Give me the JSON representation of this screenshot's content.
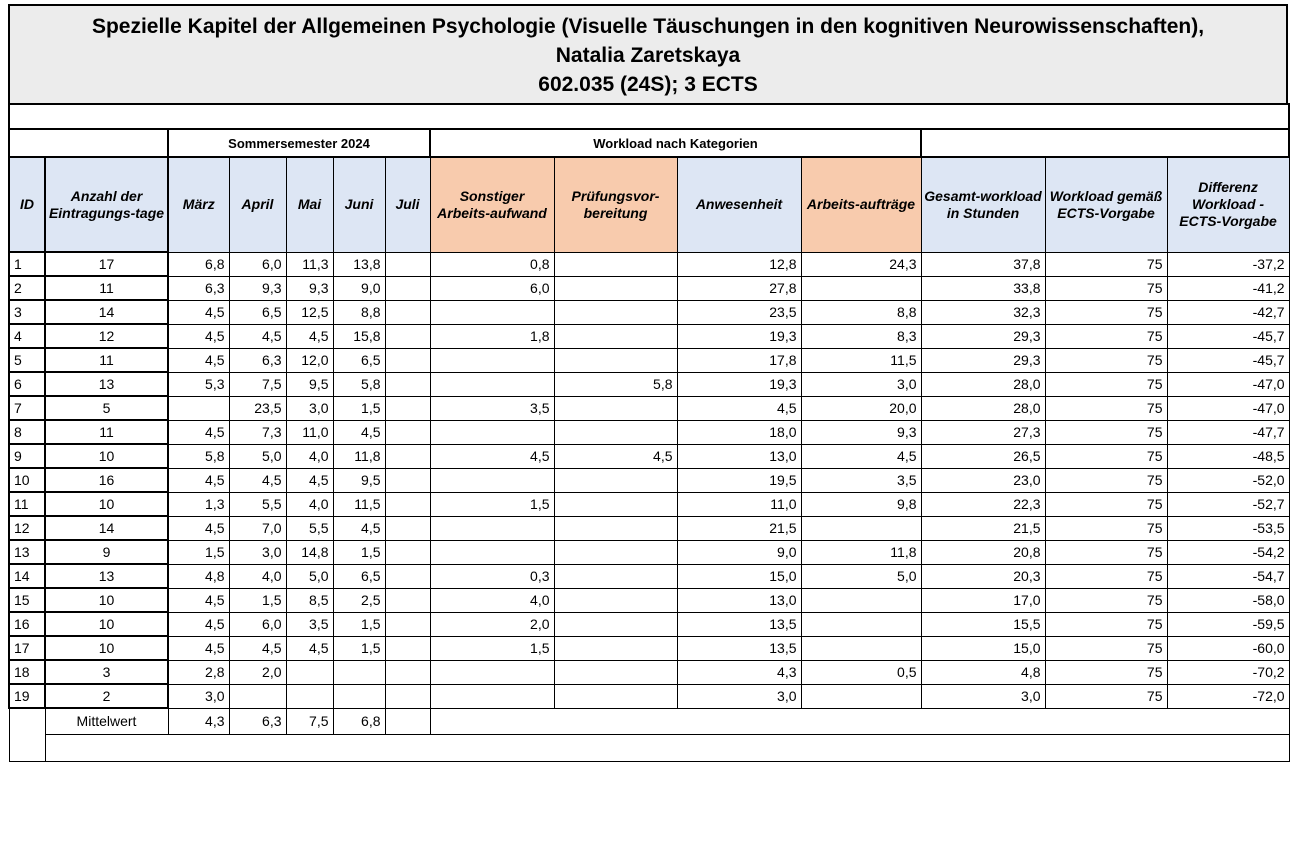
{
  "title": {
    "line1": "Spezielle Kapitel der Allgemeinen Psychologie (Visuelle Täuschungen in den kognitiven Neurowissenschaften),",
    "line2": "Natalia Zaretskaya",
    "line3": "602.035 (24S); 3 ECTS"
  },
  "groups": {
    "semester": "Sommersemester 2024",
    "workload": "Workload nach Kategorien"
  },
  "headers": {
    "id": "ID",
    "days": "Anzahl der Eintragungs-tage",
    "maerz": "März",
    "april": "April",
    "mai": "Mai",
    "juni": "Juni",
    "juli": "Juli",
    "sonstiger": "Sonstiger Arbeits-aufwand",
    "pruefung": "Prüfungsvor-bereitung",
    "anwesenheit": "Anwesenheit",
    "arbeit": "Arbeits-aufträge",
    "gesamt": "Gesamt-workload in Stunden",
    "ects": "Workload gemäß ECTS-Vorgabe",
    "diff": "Differenz Workload - ECTS-Vorgabe"
  },
  "rows": [
    [
      "1",
      "17",
      "6,8",
      "6,0",
      "11,3",
      "13,8",
      "",
      "0,8",
      "",
      "12,8",
      "24,3",
      "37,8",
      "75",
      "-37,2"
    ],
    [
      "2",
      "11",
      "6,3",
      "9,3",
      "9,3",
      "9,0",
      "",
      "6,0",
      "",
      "27,8",
      "",
      "33,8",
      "75",
      "-41,2"
    ],
    [
      "3",
      "14",
      "4,5",
      "6,5",
      "12,5",
      "8,8",
      "",
      "",
      "",
      "23,5",
      "8,8",
      "32,3",
      "75",
      "-42,7"
    ],
    [
      "4",
      "12",
      "4,5",
      "4,5",
      "4,5",
      "15,8",
      "",
      "1,8",
      "",
      "19,3",
      "8,3",
      "29,3",
      "75",
      "-45,7"
    ],
    [
      "5",
      "11",
      "4,5",
      "6,3",
      "12,0",
      "6,5",
      "",
      "",
      "",
      "17,8",
      "11,5",
      "29,3",
      "75",
      "-45,7"
    ],
    [
      "6",
      "13",
      "5,3",
      "7,5",
      "9,5",
      "5,8",
      "",
      "",
      "5,8",
      "19,3",
      "3,0",
      "28,0",
      "75",
      "-47,0"
    ],
    [
      "7",
      "5",
      "",
      "23,5",
      "3,0",
      "1,5",
      "",
      "3,5",
      "",
      "4,5",
      "20,0",
      "28,0",
      "75",
      "-47,0"
    ],
    [
      "8",
      "11",
      "4,5",
      "7,3",
      "11,0",
      "4,5",
      "",
      "",
      "",
      "18,0",
      "9,3",
      "27,3",
      "75",
      "-47,7"
    ],
    [
      "9",
      "10",
      "5,8",
      "5,0",
      "4,0",
      "11,8",
      "",
      "4,5",
      "4,5",
      "13,0",
      "4,5",
      "26,5",
      "75",
      "-48,5"
    ],
    [
      "10",
      "16",
      "4,5",
      "4,5",
      "4,5",
      "9,5",
      "",
      "",
      "",
      "19,5",
      "3,5",
      "23,0",
      "75",
      "-52,0"
    ],
    [
      "11",
      "10",
      "1,3",
      "5,5",
      "4,0",
      "11,5",
      "",
      "1,5",
      "",
      "11,0",
      "9,8",
      "22,3",
      "75",
      "-52,7"
    ],
    [
      "12",
      "14",
      "4,5",
      "7,0",
      "5,5",
      "4,5",
      "",
      "",
      "",
      "21,5",
      "",
      "21,5",
      "75",
      "-53,5"
    ],
    [
      "13",
      "9",
      "1,5",
      "3,0",
      "14,8",
      "1,5",
      "",
      "",
      "",
      "9,0",
      "11,8",
      "20,8",
      "75",
      "-54,2"
    ],
    [
      "14",
      "13",
      "4,8",
      "4,0",
      "5,0",
      "6,5",
      "",
      "0,3",
      "",
      "15,0",
      "5,0",
      "20,3",
      "75",
      "-54,7"
    ],
    [
      "15",
      "10",
      "4,5",
      "1,5",
      "8,5",
      "2,5",
      "",
      "4,0",
      "",
      "13,0",
      "",
      "17,0",
      "75",
      "-58,0"
    ],
    [
      "16",
      "10",
      "4,5",
      "6,0",
      "3,5",
      "1,5",
      "",
      "2,0",
      "",
      "13,5",
      "",
      "15,5",
      "75",
      "-59,5"
    ],
    [
      "17",
      "10",
      "4,5",
      "4,5",
      "4,5",
      "1,5",
      "",
      "1,5",
      "",
      "13,5",
      "",
      "15,0",
      "75",
      "-60,0"
    ],
    [
      "18",
      "3",
      "2,8",
      "2,0",
      "",
      "",
      "",
      "",
      "",
      "4,3",
      "0,5",
      "4,8",
      "75",
      "-70,2"
    ],
    [
      "19",
      "2",
      "3,0",
      "",
      "",
      "",
      "",
      "",
      "",
      "3,0",
      "",
      "3,0",
      "75",
      "-72,0"
    ]
  ],
  "footer": {
    "label": "Mittelwert",
    "maerz": "4,3",
    "april": "6,3",
    "mai": "7,5",
    "juni": "6,8"
  }
}
